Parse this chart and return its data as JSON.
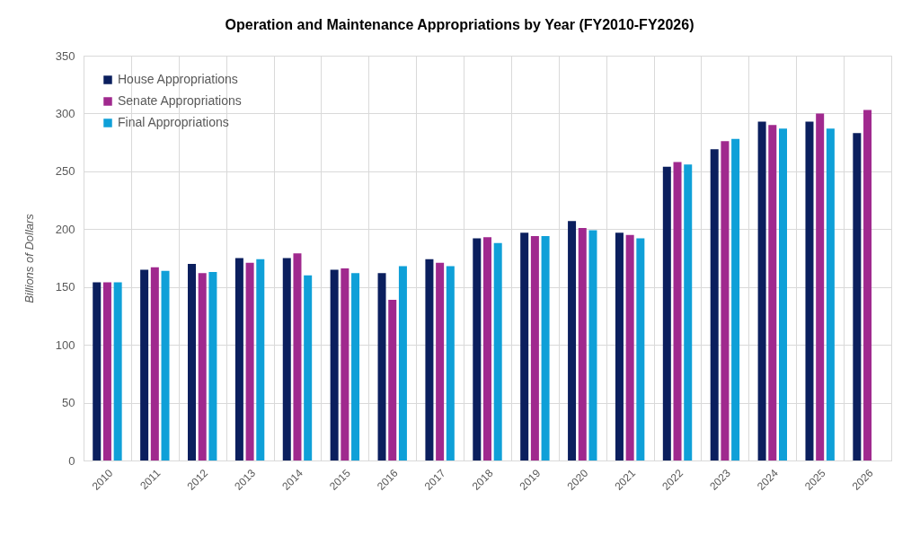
{
  "chart_data": {
    "type": "bar",
    "title": "Operation and Maintenance Appropriations by Year (FY2010-FY2026)",
    "ylabel": "Billions of Dollars",
    "categories": [
      "2010",
      "2011",
      "2012",
      "2013",
      "2014",
      "2015",
      "2016",
      "2017",
      "2018",
      "2019",
      "2020",
      "2021",
      "2022",
      "2023",
      "2024",
      "2025",
      "2026"
    ],
    "series": [
      {
        "name": "House Appropriations",
        "color": "#0b1f5e",
        "values": [
          154,
          165,
          170,
          175,
          175,
          165,
          162,
          174,
          192,
          197,
          207,
          197,
          254,
          269,
          293,
          293,
          283
        ]
      },
      {
        "name": "Senate Appropriations",
        "color": "#a0298e",
        "values": [
          154,
          167,
          162,
          171,
          179,
          166,
          139,
          171,
          193,
          194,
          201,
          195,
          258,
          276,
          290,
          300,
          303
        ]
      },
      {
        "name": "Final Appropriations",
        "color": "#0fa0d8",
        "values": [
          154,
          164,
          163,
          174,
          160,
          162,
          168,
          168,
          188,
          194,
          199,
          192,
          256,
          278,
          287,
          287,
          null
        ]
      }
    ],
    "ylim": [
      0,
      350
    ],
    "yticks": [
      0,
      50,
      100,
      150,
      200,
      250,
      300,
      350
    ],
    "grid": true,
    "legend": "top left"
  }
}
